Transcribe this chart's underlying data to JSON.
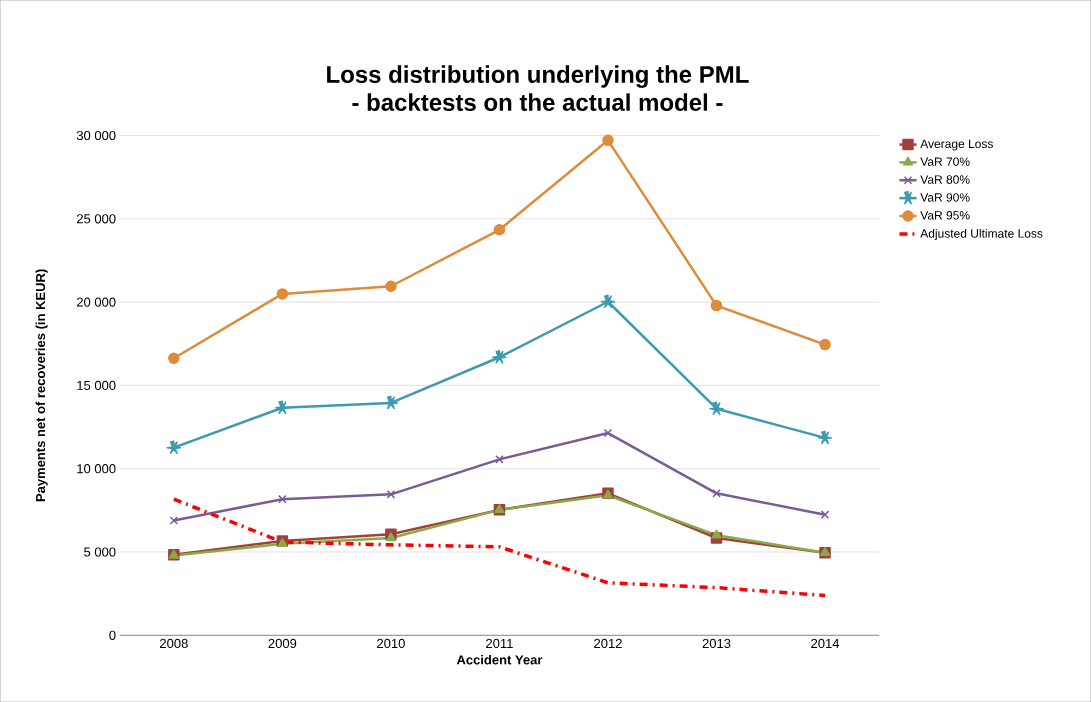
{
  "chart_data": {
    "type": "line",
    "title": "Loss distribution underlying the PML\n- backtests on the actual model -",
    "xlabel": "Accident Year",
    "ylabel": "Payments net of recoveries (in KEUR)",
    "categories": [
      "2008",
      "2009",
      "2010",
      "2011",
      "2012",
      "2013",
      "2014"
    ],
    "series": [
      {
        "name": "Average Loss",
        "color": "#a0413c",
        "marker": "square",
        "values": [
          4840,
          5660,
          6070,
          7530,
          8520,
          5840,
          4960
        ]
      },
      {
        "name": "VaR 70%",
        "color": "#8aaa48",
        "marker": "triangle",
        "values": [
          4790,
          5490,
          5840,
          7530,
          8400,
          6010,
          4960
        ]
      },
      {
        "name": "VaR 80%",
        "color": "#7a5c95",
        "marker": "cross",
        "values": [
          6890,
          8170,
          8460,
          10560,
          12140,
          8520,
          7240
        ]
      },
      {
        "name": "VaR 90%",
        "color": "#3d9bb0",
        "marker": "star",
        "values": [
          11260,
          13660,
          13950,
          16690,
          20020,
          13600,
          11850
        ]
      },
      {
        "name": "VaR 95%",
        "color": "#e08a3c",
        "marker": "circle",
        "values": [
          16630,
          20490,
          20950,
          24340,
          29710,
          19790,
          17450
        ]
      },
      {
        "name": "Adjusted Ultimate Loss",
        "color": "#ff0000",
        "marker": "none",
        "line_style": "dashed",
        "values": [
          8170,
          5600,
          5430,
          5310,
          3150,
          2860,
          2390
        ]
      }
    ],
    "ylim": [
      0,
      30000
    ],
    "yticks": [
      0,
      {
        "value": 5000,
        "label": "5 000"
      },
      {
        "value": 10000,
        "label": "10 000"
      },
      {
        "value": 15000,
        "label": "15 000"
      },
      {
        "value": 20000,
        "label": "20 000"
      },
      {
        "value": 25000,
        "label": "25 000"
      },
      {
        "value": 30000,
        "label": "30 000"
      }
    ],
    "grid": "y",
    "legend": "right",
    "line_style": "solid"
  }
}
